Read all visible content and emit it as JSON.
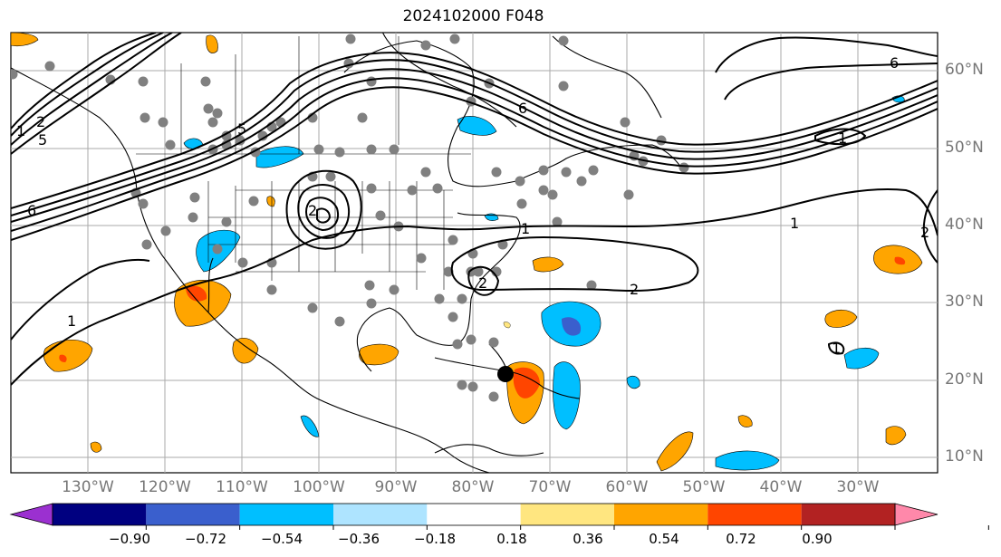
{
  "title": "2024102000 F048",
  "lat_labels": [
    "60°N",
    "50°N",
    "40°N",
    "30°N",
    "20°N",
    "10°N"
  ],
  "lon_labels": [
    "130°W",
    "120°W",
    "110°W",
    "100°W",
    "90°W",
    "80°W",
    "70°W",
    "60°W",
    "50°W",
    "40°W",
    "30°W"
  ],
  "colorbar": {
    "labels": [
      "−0.90",
      "−0.72",
      "−0.54",
      "−0.36",
      "−0.18",
      "0.18",
      "0.36",
      "0.54",
      "0.72",
      "0.90"
    ],
    "colors": [
      "#9b30d0",
      "#000080",
      "#3a5fcd",
      "#00bfff",
      "#aee4ff",
      "#ffffff",
      "#ffe680",
      "#ffa500",
      "#ff4500",
      "#b22222",
      "#ff88aa"
    ]
  },
  "contour_labels": [
    "1",
    "2",
    "6",
    "1",
    "2",
    "1",
    "6",
    "2",
    "1",
    "2",
    "1",
    "6",
    "5",
    "5",
    "2",
    "1"
  ],
  "colors": {
    "grid": "#aaaaaa",
    "coast": "#000000",
    "station": "#808080",
    "contour": "#000000"
  }
}
